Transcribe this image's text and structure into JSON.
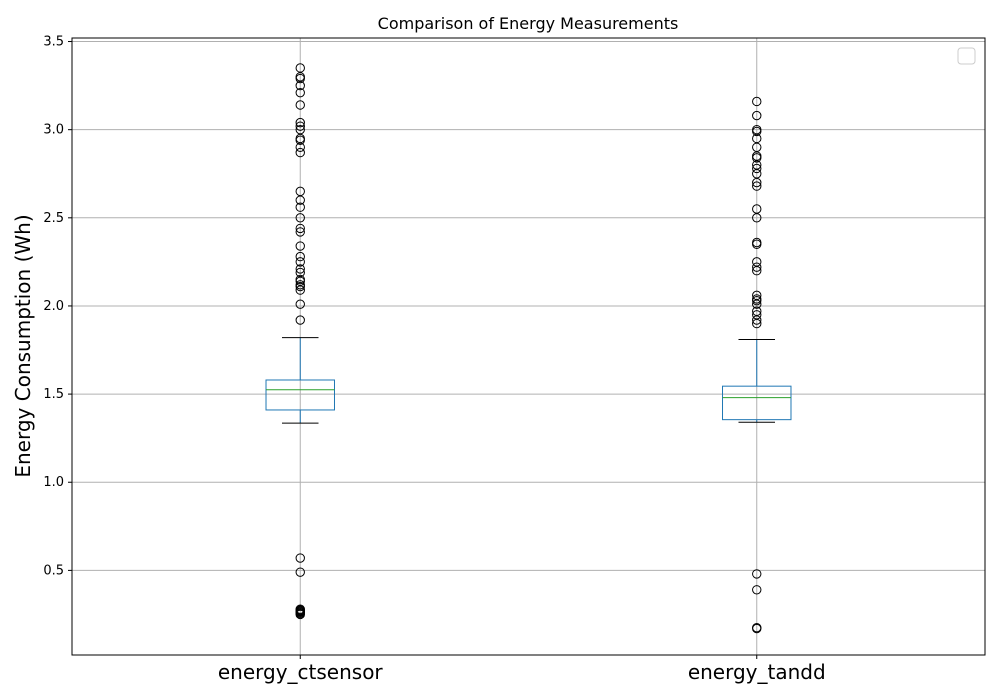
{
  "chart_data": {
    "type": "box",
    "title": "Comparison of Energy Measurements",
    "xlabel": "",
    "ylabel": "Energy Consumption (Wh)",
    "ylim": [
      0.02,
      3.52
    ],
    "yticks": [
      0.5,
      1.0,
      1.5,
      2.0,
      2.5,
      3.0,
      3.5
    ],
    "ytick_labels": [
      "0.5",
      "1.0",
      "1.5",
      "2.0",
      "2.5",
      "3.0",
      "3.5"
    ],
    "grid": true,
    "legend": {
      "placement": "top-right",
      "entries": []
    },
    "categories": [
      "energy_ctsensor",
      "energy_tandd"
    ],
    "boxes": [
      {
        "name": "energy_ctsensor",
        "whisker_low": 1.335,
        "q1": 1.41,
        "median": 1.525,
        "q3": 1.58,
        "whisker_high": 1.82,
        "outliers": [
          0.25,
          0.255,
          0.26,
          0.265,
          0.27,
          0.275,
          0.28,
          0.49,
          0.57,
          1.92,
          2.01,
          2.09,
          2.11,
          2.12,
          2.14,
          2.15,
          2.19,
          2.21,
          2.25,
          2.28,
          2.34,
          2.42,
          2.44,
          2.5,
          2.56,
          2.6,
          2.65,
          2.87,
          2.9,
          2.94,
          2.95,
          3.0,
          3.02,
          3.04,
          3.14,
          3.21,
          3.25,
          3.29,
          3.3,
          3.35
        ]
      },
      {
        "name": "energy_tandd",
        "whisker_low": 1.34,
        "q1": 1.355,
        "median": 1.48,
        "q3": 1.545,
        "whisker_high": 1.81,
        "outliers": [
          0.17,
          0.175,
          0.39,
          0.48,
          1.9,
          1.92,
          1.95,
          1.97,
          2.01,
          2.03,
          2.04,
          2.06,
          2.2,
          2.22,
          2.25,
          2.35,
          2.36,
          2.5,
          2.55,
          2.68,
          2.7,
          2.75,
          2.78,
          2.8,
          2.84,
          2.85,
          2.9,
          2.95,
          2.99,
          3.0,
          3.08,
          3.16
        ]
      }
    ],
    "colors": {
      "box": "#1f77b4",
      "median": "#2ca02c",
      "whisker_cap": "#000000",
      "outlier": "#000000",
      "grid": "#b0b0b0",
      "axes": "#000000"
    }
  }
}
